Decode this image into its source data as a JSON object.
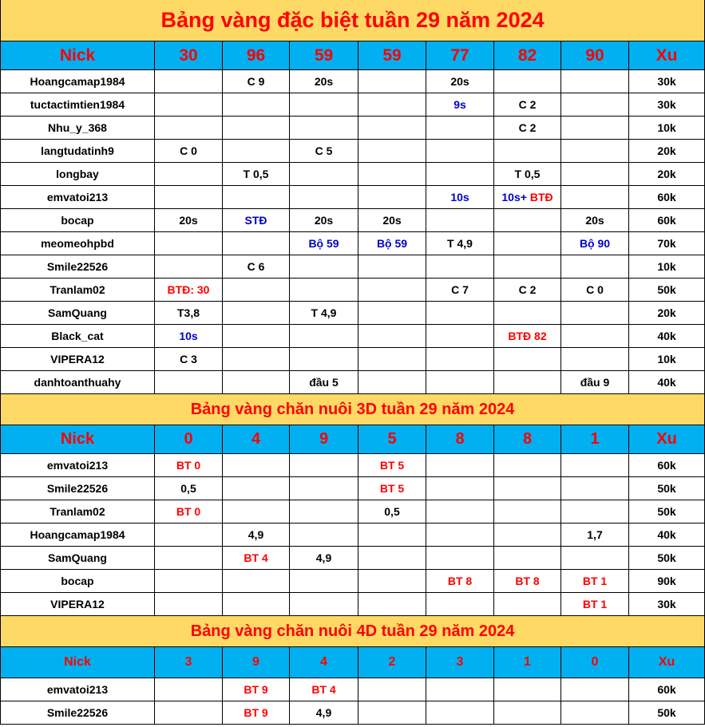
{
  "colors": {
    "title_bg": "#FFD966",
    "header_bg": "#00B0F0",
    "red": "#FF0000",
    "blue": "#0000CC",
    "black": "#000000"
  },
  "sections": [
    {
      "title": "Bảng vàng đặc biệt tuần 29 năm 2024",
      "style": "title",
      "headers": [
        "Nick",
        "30",
        "96",
        "59",
        "59",
        "77",
        "82",
        "90",
        "Xu"
      ],
      "header_style": "h1",
      "rows": [
        [
          "Hoangcamap1984",
          "",
          "C 9",
          "20s",
          "",
          "20s",
          "",
          "",
          "30k"
        ],
        [
          "tuctactimtien1984",
          "",
          "",
          "",
          "",
          {
            "t": "9s",
            "c": "blue"
          },
          "C 2",
          "",
          "30k"
        ],
        [
          "Nhu_y_368",
          "",
          "",
          "",
          "",
          "",
          "C 2",
          "",
          "10k"
        ],
        [
          "langtudatinh9",
          "C 0",
          "",
          "C 5",
          "",
          "",
          "",
          "",
          "20k"
        ],
        [
          "longbay",
          "",
          "T 0,5",
          "",
          "",
          "",
          "T 0,5",
          "",
          "20k"
        ],
        [
          "emvatoi213",
          "",
          "",
          "",
          "",
          {
            "t": "10s",
            "c": "blue"
          },
          [
            {
              "t": "10s+ ",
              "c": "blue"
            },
            {
              "t": "BTĐ",
              "c": "red"
            }
          ],
          "",
          "60k"
        ],
        [
          "bocap",
          "20s",
          {
            "t": "STĐ",
            "c": "blue"
          },
          "20s",
          "20s",
          "",
          "",
          "20s",
          "60k"
        ],
        [
          "meomeohpbd",
          "",
          "",
          {
            "t": "Bộ 59",
            "c": "blue"
          },
          {
            "t": "Bộ 59",
            "c": "blue"
          },
          "T 4,9",
          "",
          {
            "t": "Bộ 90",
            "c": "blue"
          },
          "70k"
        ],
        [
          "Smile22526",
          "",
          "C 6",
          "",
          "",
          "",
          "",
          "",
          "10k"
        ],
        [
          "Tranlam02",
          {
            "t": "BTĐ: 30",
            "c": "red"
          },
          "",
          "",
          "",
          "C 7",
          "C 2",
          "C 0",
          "50k"
        ],
        [
          "SamQuang",
          "T3,8",
          "",
          "T 4,9",
          "",
          "",
          "",
          "",
          "20k"
        ],
        [
          "Black_cat",
          {
            "t": "10s",
            "c": "blue"
          },
          "",
          "",
          "",
          "",
          {
            "t": "BTĐ 82",
            "c": "red"
          },
          "",
          "40k"
        ],
        [
          "VIPERA12",
          "C 3",
          "",
          "",
          "",
          "",
          "",
          "",
          "10k"
        ],
        [
          "danhtoanthuahy",
          "",
          "",
          "đầu 5",
          "",
          "",
          "",
          "đầu 9",
          "40k"
        ]
      ]
    },
    {
      "title": "Bảng vàng chăn nuôi 3D tuần 29 năm 2024",
      "style": "sub",
      "headers": [
        "Nick",
        "0",
        "4",
        "9",
        "5",
        "8",
        "8",
        "1",
        "Xu"
      ],
      "header_style": "h2",
      "rows": [
        [
          "emvatoi213",
          {
            "t": "BT 0",
            "c": "red"
          },
          "",
          "",
          {
            "t": "BT 5",
            "c": "red"
          },
          "",
          "",
          "",
          "60k"
        ],
        [
          "Smile22526",
          "0,5",
          "",
          "",
          {
            "t": "BT 5",
            "c": "red"
          },
          "",
          "",
          "",
          "50k"
        ],
        [
          "Tranlam02",
          {
            "t": "BT 0",
            "c": "red"
          },
          "",
          "",
          "0,5",
          "",
          "",
          "",
          "50k"
        ],
        [
          "Hoangcamap1984",
          "",
          "4,9",
          "",
          "",
          "",
          "",
          "1,7",
          "40k"
        ],
        [
          "SamQuang",
          "",
          {
            "t": "BT 4",
            "c": "red"
          },
          "4,9",
          "",
          "",
          "",
          "",
          "50k"
        ],
        [
          "bocap",
          "",
          "",
          "",
          "",
          {
            "t": "BT 8",
            "c": "red"
          },
          {
            "t": "BT 8",
            "c": "red"
          },
          {
            "t": "BT 1",
            "c": "red"
          },
          "90k"
        ],
        [
          "VIPERA12",
          "",
          "",
          "",
          "",
          "",
          "",
          {
            "t": "BT 1",
            "c": "red"
          },
          "30k"
        ]
      ]
    },
    {
      "title": "Bảng vàng chăn nuôi 4D tuần 29 năm 2024",
      "style": "sub",
      "headers": [
        "Nick",
        "3",
        "9",
        "4",
        "2",
        "3",
        "1",
        "0",
        "Xu"
      ],
      "header_style": "h3",
      "rows": [
        [
          "emvatoi213",
          "",
          {
            "t": "BT 9",
            "c": "red"
          },
          {
            "t": "BT 4",
            "c": "red"
          },
          "",
          "",
          "",
          "",
          "60k"
        ],
        [
          "Smile22526",
          "",
          {
            "t": "BT 9",
            "c": "red"
          },
          "4,9",
          "",
          "",
          "",
          "",
          "50k"
        ]
      ]
    }
  ]
}
